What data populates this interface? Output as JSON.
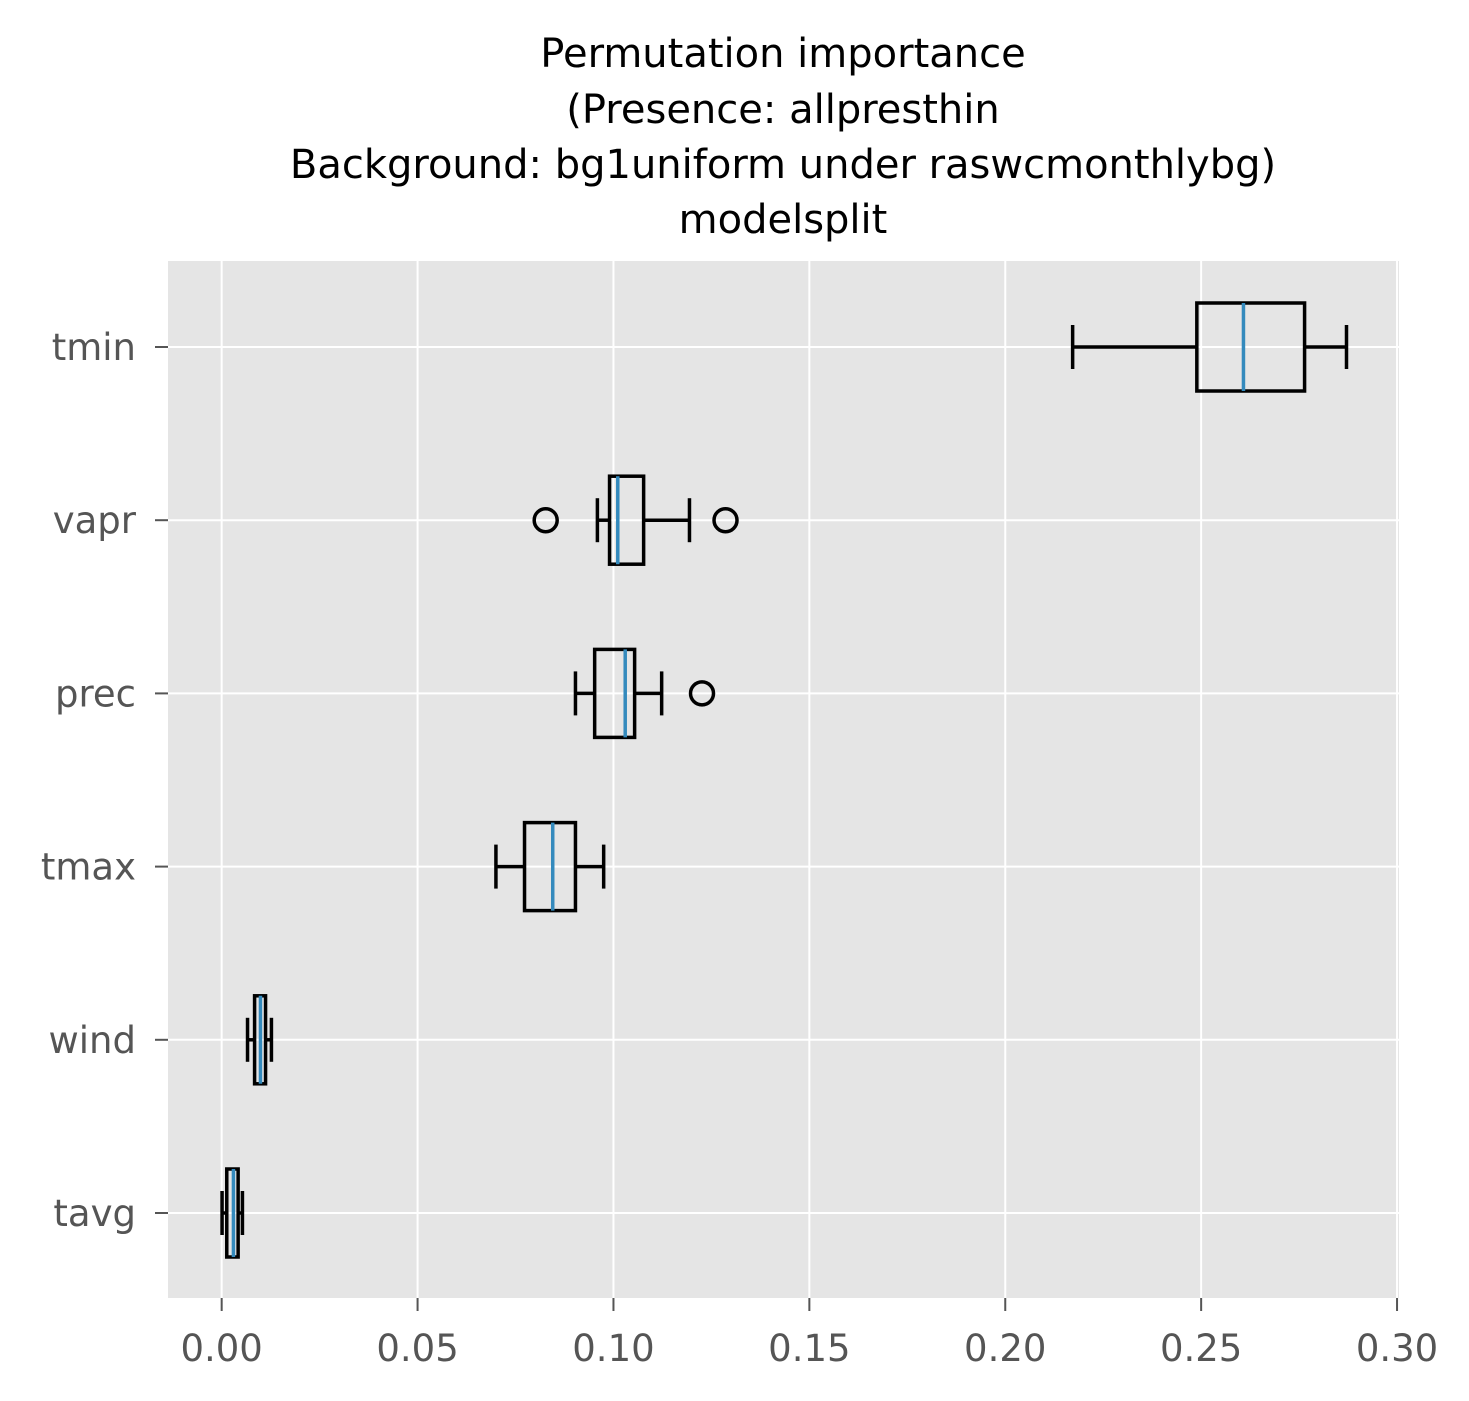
{
  "chart_data": {
    "type": "boxplot",
    "orientation": "horizontal",
    "title_lines": [
      "Permutation importance",
      "(Presence: allpresthin",
      "Background: bg1uniform under raswcmonthlybg)",
      "modelsplit"
    ],
    "xlabel": "",
    "ylabel": "",
    "xlim": [
      -0.0137,
      0.3005
    ],
    "xticks": [
      0.0,
      0.05,
      0.1,
      0.15,
      0.2,
      0.25,
      0.3
    ],
    "xtick_labels": [
      "0.00",
      "0.05",
      "0.10",
      "0.15",
      "0.20",
      "0.25",
      "0.30"
    ],
    "grid": true,
    "style": "ggplot",
    "colors": {
      "plot_background": "#e5e5e5",
      "grid": "#ffffff",
      "box": "#000000",
      "median": "#348abd",
      "tick_label": "#555555"
    },
    "categories": [
      "tmin",
      "vapr",
      "prec",
      "tmax",
      "wind",
      "tavg"
    ],
    "boxes": [
      {
        "name": "tmin",
        "whislo": 0.2172,
        "q1": 0.2489,
        "med": 0.2608,
        "q3": 0.2764,
        "whishi": 0.2871,
        "fliers": []
      },
      {
        "name": "vapr",
        "whislo": 0.0959,
        "q1": 0.099,
        "med": 0.1011,
        "q3": 0.1077,
        "whishi": 0.1194,
        "fliers": [
          0.0827,
          0.1286
        ]
      },
      {
        "name": "prec",
        "whislo": 0.0903,
        "q1": 0.0952,
        "med": 0.103,
        "q3": 0.1054,
        "whishi": 0.1123,
        "fliers": [
          0.1226
        ]
      },
      {
        "name": "tmax",
        "whislo": 0.07,
        "q1": 0.0773,
        "med": 0.0845,
        "q3": 0.0903,
        "whishi": 0.0975,
        "fliers": []
      },
      {
        "name": "wind",
        "whislo": 0.0066,
        "q1": 0.0084,
        "med": 0.0099,
        "q3": 0.0112,
        "whishi": 0.0127,
        "fliers": []
      },
      {
        "name": "tavg",
        "whislo": 0.0001,
        "q1": 0.0013,
        "med": 0.003,
        "q3": 0.0042,
        "whishi": 0.0053,
        "fliers": []
      }
    ]
  }
}
